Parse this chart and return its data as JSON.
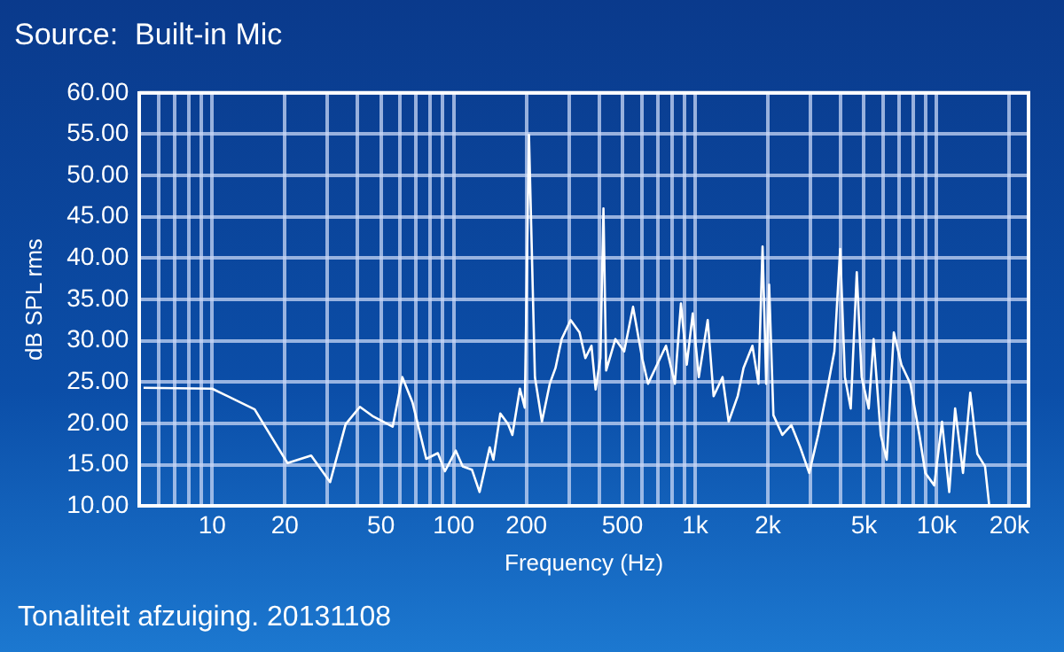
{
  "chart_data": {
    "type": "line",
    "title": "Source:  Built-in Mic",
    "xlabel": "Frequency (Hz)",
    "ylabel": "dB SPL rms",
    "annotations": [
      "Tonaliteit afzuiging. 20131108"
    ],
    "log": "x",
    "grid": true,
    "marker": "none",
    "line_style": "solid",
    "xlim": [
      5,
      24000
    ],
    "xticks": [
      {
        "value": 6,
        "label": null
      },
      {
        "value": 7,
        "label": null
      },
      {
        "value": 8,
        "label": null
      },
      {
        "value": 9,
        "label": null
      },
      10,
      20,
      {
        "value": 30,
        "label": null
      },
      {
        "value": 40,
        "label": null
      },
      50,
      {
        "value": 60,
        "label": null
      },
      {
        "value": 70,
        "label": null
      },
      {
        "value": 80,
        "label": null
      },
      {
        "value": 90,
        "label": null
      },
      100,
      200,
      {
        "value": 300,
        "label": null
      },
      {
        "value": 400,
        "label": null
      },
      500,
      {
        "value": 600,
        "label": null
      },
      {
        "value": 700,
        "label": null
      },
      {
        "value": 800,
        "label": null
      },
      {
        "value": 900,
        "label": null
      },
      {
        "value": 1000,
        "label": "1k"
      },
      {
        "value": 2000,
        "label": "2k"
      },
      {
        "value": 3000,
        "label": null
      },
      {
        "value": 4000,
        "label": null
      },
      {
        "value": 5000,
        "label": "5k"
      },
      {
        "value": 6000,
        "label": null
      },
      {
        "value": 7000,
        "label": null
      },
      {
        "value": 8000,
        "label": null
      },
      {
        "value": 9000,
        "label": null
      },
      {
        "value": 10000,
        "label": "10k"
      },
      {
        "value": 20000,
        "label": "20k"
      }
    ],
    "ylim": [
      10,
      60
    ],
    "yticks": [
      {
        "value": 10,
        "label": "10.00"
      },
      {
        "value": 15,
        "label": "15.00"
      },
      {
        "value": 20,
        "label": "20.00"
      },
      {
        "value": 25,
        "label": "25.00"
      },
      {
        "value": 30,
        "label": "30.00"
      },
      {
        "value": 35,
        "label": "35.00"
      },
      {
        "value": 40,
        "label": "40.00"
      },
      {
        "value": 45,
        "label": "45.00"
      },
      {
        "value": 50,
        "label": "50.00"
      },
      {
        "value": 55,
        "label": "55.00"
      },
      {
        "value": 60,
        "label": "60.00"
      }
    ],
    "series": [
      {
        "color": "#ffffff",
        "x": [
          5.2,
          10,
          15,
          20.5,
          25.7,
          30.8,
          35.7,
          40.9,
          46.1,
          55.9,
          61.3,
          67.6,
          77,
          86,
          92,
          102,
          109,
          119,
          128,
          141,
          146,
          156,
          168,
          175,
          188,
          197,
          205,
          217,
          232,
          250,
          264,
          280,
          305,
          332,
          351,
          372,
          387,
          405,
          417,
          428,
          467,
          508,
          553,
          603,
          638,
          695,
          757,
          824,
          873,
          923,
          977,
          1035,
          1127,
          1192,
          1298,
          1376,
          1500,
          1585,
          1726,
          1828,
          1901,
          1968,
          2024,
          2108,
          2296,
          2500,
          2723,
          2966,
          3230,
          3519,
          3769,
          3983,
          4169,
          4406,
          4667,
          4890,
          5230,
          5479,
          5867,
          6209,
          6644,
          7144,
          7780,
          8478,
          8972,
          9772,
          10520,
          11270,
          11920,
          12850,
          13770,
          14730,
          15850,
          16480
        ],
        "values": [
          24.3,
          24.2,
          21.7,
          15.2,
          16.1,
          12.9,
          19.9,
          22.0,
          20.9,
          19.6,
          25.6,
          22.5,
          15.7,
          16.4,
          14.2,
          16.7,
          14.8,
          14.4,
          11.7,
          17.1,
          15.6,
          21.2,
          19.9,
          18.6,
          24.2,
          21.9,
          54.9,
          25.6,
          20.2,
          24.8,
          26.7,
          30.2,
          32.5,
          31.0,
          27.9,
          29.4,
          24.1,
          27.9,
          46.0,
          26.4,
          30.2,
          28.7,
          34.1,
          27.9,
          24.8,
          27.1,
          29.4,
          24.8,
          34.5,
          27.1,
          33.3,
          25.6,
          32.5,
          23.3,
          25.6,
          20.2,
          23.3,
          26.7,
          29.4,
          24.8,
          41.4,
          24.8,
          36.8,
          21.0,
          18.6,
          19.8,
          17.1,
          14.0,
          18.6,
          24.1,
          28.7,
          41.1,
          25.6,
          21.8,
          38.3,
          25.6,
          21.8,
          30.2,
          18.6,
          15.6,
          31.0,
          27.1,
          24.8,
          18.6,
          14.0,
          12.5,
          20.2,
          11.7,
          21.8,
          14.0,
          23.7,
          16.3,
          14.8,
          10.2
        ]
      }
    ]
  }
}
